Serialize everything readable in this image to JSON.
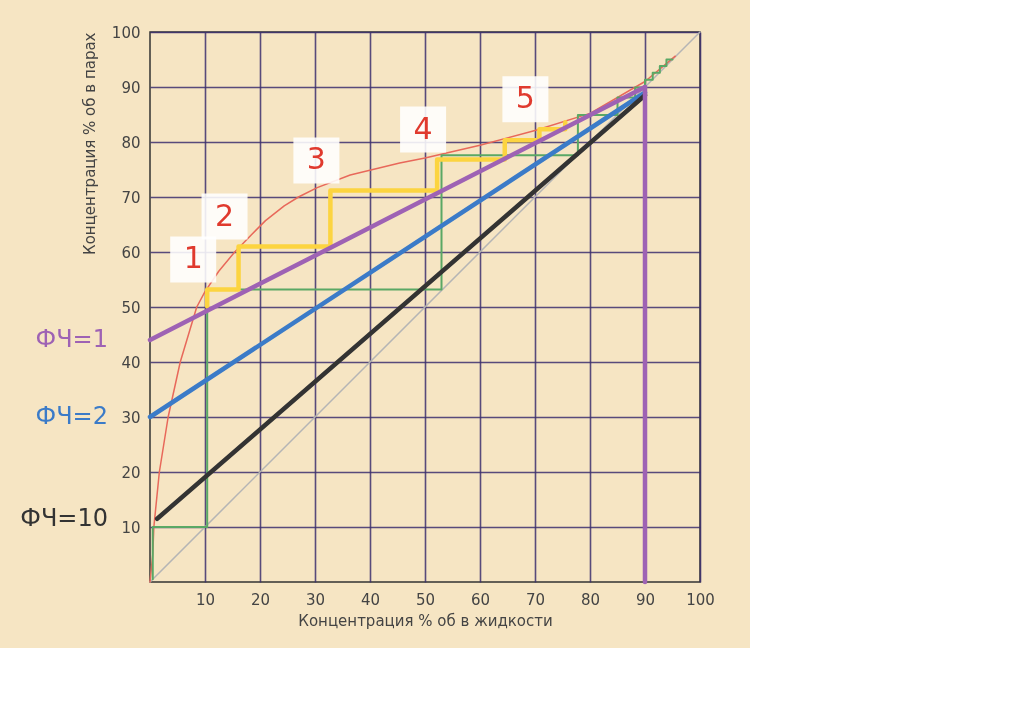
{
  "chart_data": {
    "type": "line",
    "xlabel": "Концентрация % об в жидкости",
    "ylabel": "Концентрация % об в парах",
    "xlim": [
      0,
      100
    ],
    "ylim": [
      0,
      100
    ],
    "xticks": [
      10,
      20,
      30,
      40,
      50,
      60,
      70,
      80,
      90,
      100
    ],
    "yticks": [
      10,
      20,
      30,
      40,
      50,
      60,
      70,
      80,
      90,
      100
    ],
    "grid": true,
    "series": [
      {
        "color": "#b5b5b5",
        "x": [
          0,
          100
        ],
        "values": [
          0,
          100
        ]
      },
      {
        "color": "#e8685a",
        "x": [
          0,
          0.5,
          0.7,
          1.7,
          3.3,
          5.5,
          7,
          8.5,
          10,
          12.5,
          15.4,
          18.4,
          21,
          24.4,
          27,
          30.4,
          36.4,
          45.4,
          50,
          60,
          70,
          80,
          90,
          95.5
        ],
        "values": [
          0,
          5,
          10,
          20,
          30,
          40,
          45,
          50,
          52.8,
          56.5,
          60,
          63.1,
          65.7,
          68.4,
          70,
          71.7,
          74,
          76.2,
          77.1,
          79.4,
          82.1,
          85.2,
          91,
          95.6
        ]
      },
      {
        "color": "#5aa865",
        "x": [
          0.5,
          0.5,
          10.4,
          10.4,
          53,
          53,
          77.8,
          77.8,
          85,
          85,
          88.2,
          88.2,
          90,
          90,
          91.4,
          91.4,
          92.7,
          92.7,
          93.9,
          93.9,
          95
        ],
        "values": [
          0.5,
          10,
          10,
          53.2,
          53.2,
          77.6,
          77.6,
          84.9,
          84.9,
          88.1,
          88.1,
          89.9,
          89.9,
          91.3,
          91.3,
          92.6,
          92.6,
          93.8,
          93.8,
          95,
          95
        ]
      },
      {
        "color": "#fcd440",
        "x": [
          10.4,
          10.4,
          16.1,
          16.1,
          32.8,
          32.8,
          52.2,
          52.2,
          64.5,
          64.5,
          70.8,
          70.8,
          75.5,
          75.5
        ],
        "values": [
          50.1,
          53.2,
          53.2,
          61,
          61,
          71.2,
          71.2,
          76.8,
          76.8,
          80.3,
          80.3,
          82.3,
          82.3,
          83.6
        ]
      },
      {
        "name": "ФЧ=1",
        "color": "#9e62b4",
        "x": [
          0,
          90
        ],
        "values": [
          44,
          90
        ]
      },
      {
        "name": "ФЧ=2",
        "color": "#3b7bc8",
        "x": [
          0,
          90
        ],
        "values": [
          30,
          89
        ]
      },
      {
        "name": "ФЧ=10",
        "color": "#333333",
        "x": [
          1.3,
          90
        ],
        "values": [
          11.5,
          88.5
        ]
      },
      {
        "color": "#9e62b4",
        "x": [
          90,
          90
        ],
        "values": [
          0,
          90
        ]
      }
    ],
    "annotations": [
      {
        "text": "1",
        "x": 10.4,
        "y": 53.2
      },
      {
        "text": "2",
        "x": 16.1,
        "y": 61
      },
      {
        "text": "3",
        "x": 32.8,
        "y": 71.2
      },
      {
        "text": "4",
        "x": 52.2,
        "y": 76.8
      },
      {
        "text": "5",
        "x": 70.8,
        "y": 82.3
      }
    ]
  }
}
